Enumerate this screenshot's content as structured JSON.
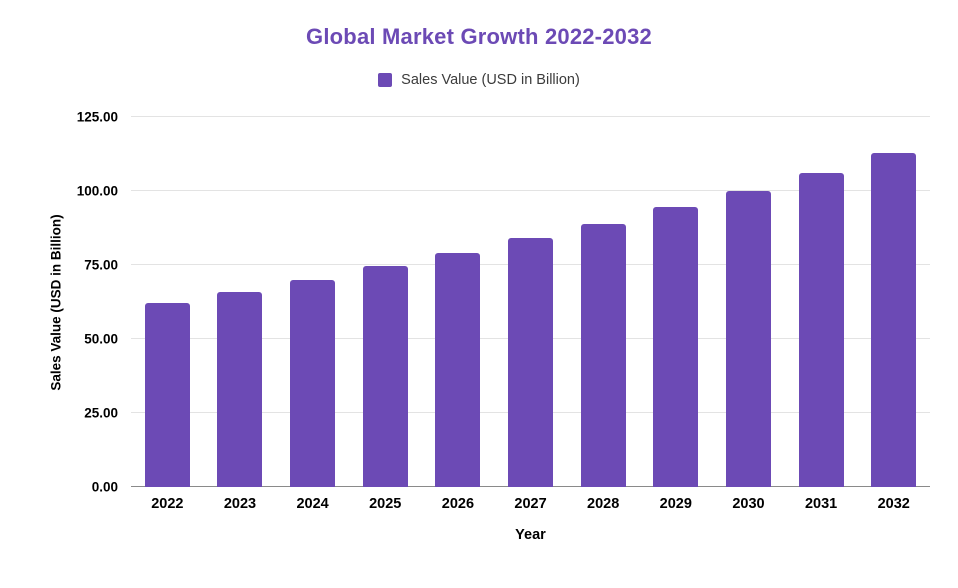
{
  "chart_data": {
    "type": "bar",
    "title": "Global Market Growth 2022-2032",
    "xlabel": "Year",
    "ylabel": "Sales Value (USD in Billion)",
    "legend": [
      {
        "label": "Sales Value (USD in Billion)",
        "color": "#6C4AB5"
      }
    ],
    "legend_position": "top",
    "grid": true,
    "categories": [
      "2022",
      "2023",
      "2024",
      "2025",
      "2026",
      "2027",
      "2028",
      "2029",
      "2030",
      "2031",
      "2032"
    ],
    "series": [
      {
        "name": "Sales Value (USD in Billion)",
        "values": [
          62,
          66,
          70,
          74.5,
          79,
          84,
          89,
          94.5,
          100,
          106,
          113
        ]
      }
    ],
    "ylim": [
      0,
      125
    ],
    "y_ticks": [
      {
        "value": 0,
        "label": "0.00"
      },
      {
        "value": 25,
        "label": "25.00"
      },
      {
        "value": 50,
        "label": "50.00"
      },
      {
        "value": 75,
        "label": "75.00"
      },
      {
        "value": 100,
        "label": "100.00"
      },
      {
        "value": 125,
        "label": "125.00"
      }
    ],
    "colors": {
      "bar": "#6C4AB5",
      "title": "#6C4AB5",
      "grid": "#e3e3e3",
      "axis_line": "#8a8a8a",
      "text": "#000000"
    }
  }
}
